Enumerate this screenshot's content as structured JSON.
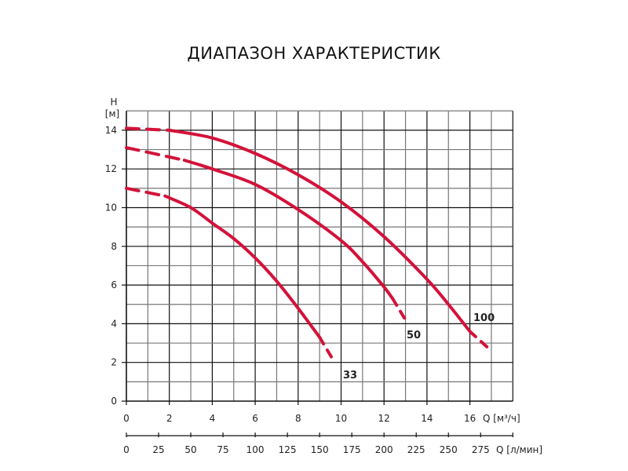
{
  "title": "ДИАПАЗОН ХАРАКТЕРИСТИК",
  "chart_data": {
    "type": "line",
    "title": "ДИАПАЗОН ХАРАКТЕРИСТИК",
    "ylabel": "H [м]",
    "xlabel": "Q [м³/ч]",
    "xlabel2": "Q [л/мин]",
    "xlim": [
      0,
      18
    ],
    "ylim": [
      0,
      15
    ],
    "grid": true,
    "y_ticks": [
      0,
      2,
      4,
      6,
      8,
      10,
      12,
      14
    ],
    "x_ticks": [
      0,
      2,
      4,
      6,
      8,
      10,
      12,
      14,
      16
    ],
    "x2_ticks": [
      0,
      25,
      50,
      75,
      100,
      125,
      150,
      175,
      200,
      225,
      250,
      275
    ],
    "series": [
      {
        "name": "100",
        "color": "#d3123a",
        "dashed_start": [
          [
            0,
            14.1
          ],
          [
            2,
            14.0
          ]
        ],
        "solid": [
          [
            2,
            14.0
          ],
          [
            4,
            13.6
          ],
          [
            6,
            12.8
          ],
          [
            8,
            11.7
          ],
          [
            10,
            10.3
          ],
          [
            12,
            8.5
          ],
          [
            14,
            6.3
          ],
          [
            15,
            5.0
          ],
          [
            16,
            3.6
          ]
        ],
        "dashed_end": [
          [
            16,
            3.6
          ],
          [
            16.8,
            2.8
          ]
        ]
      },
      {
        "name": "50",
        "color": "#d3123a",
        "dashed_start": [
          [
            0,
            13.1
          ],
          [
            2.7,
            12.45
          ]
        ],
        "solid": [
          [
            2.7,
            12.45
          ],
          [
            4,
            12.0
          ],
          [
            6,
            11.2
          ],
          [
            8,
            9.9
          ],
          [
            10,
            8.3
          ],
          [
            11,
            7.2
          ],
          [
            12,
            5.9
          ],
          [
            12.4,
            5.3
          ]
        ],
        "dashed_end": [
          [
            12.4,
            5.3
          ],
          [
            13.0,
            4.2
          ]
        ]
      },
      {
        "name": "33",
        "color": "#d3123a",
        "dashed_start": [
          [
            0,
            11.0
          ],
          [
            1.8,
            10.6
          ]
        ],
        "solid": [
          [
            1.8,
            10.6
          ],
          [
            3,
            10.0
          ],
          [
            4,
            9.2
          ],
          [
            5,
            8.4
          ],
          [
            6,
            7.4
          ],
          [
            7,
            6.2
          ],
          [
            8,
            4.8
          ],
          [
            9,
            3.3
          ]
        ],
        "dashed_end": [
          [
            9,
            3.3
          ],
          [
            9.7,
            2.0
          ]
        ]
      }
    ],
    "annotations": [
      "100",
      "50",
      "33"
    ]
  }
}
